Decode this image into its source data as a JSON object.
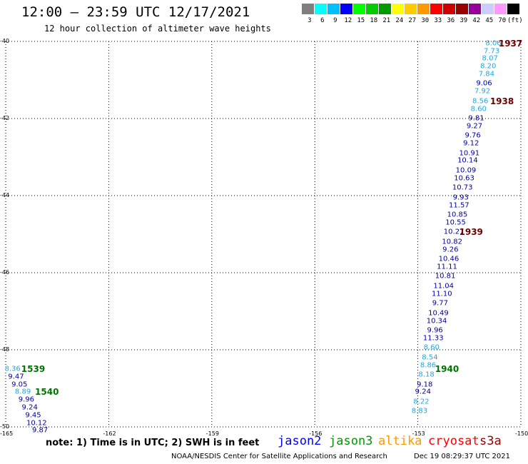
{
  "header": {
    "title": "12:00 — 23:59 UTC 12/17/2021",
    "subtitle": "12 hour collection of altimeter wave heights"
  },
  "scale": {
    "colors": [
      "#7f7f7f",
      "#00ffff",
      "#00bfff",
      "#0000ff",
      "#00ff00",
      "#00cc00",
      "#009900",
      "#ffff00",
      "#ffcc00",
      "#ff9900",
      "#ff0000",
      "#cc0000",
      "#990000",
      "#990099",
      "#ccccff",
      "#ff99ff",
      "#000000"
    ],
    "labels": [
      "3",
      "6",
      "9",
      "12",
      "15",
      "18",
      "21",
      "24",
      "27",
      "30",
      "33",
      "36",
      "39",
      "42",
      "45",
      "70",
      "(ft)"
    ]
  },
  "chart_data": {
    "type": "scatter",
    "xlim": [
      -165,
      -150
    ],
    "ylim": [
      -50,
      -40
    ],
    "x_ticks": [
      "-165",
      "-162",
      "-159",
      "-156",
      "-153",
      "-150"
    ],
    "y_ticks": [
      "-40",
      "-42",
      "-44",
      "-46",
      "-48",
      "-50"
    ],
    "x_tick_values": [
      -165,
      -162,
      -159,
      -156,
      -153,
      -150
    ],
    "y_tick_values": [
      -40,
      -42,
      -44,
      -46,
      -48,
      -50
    ],
    "grid": true,
    "palette": {
      "light": "#1eaadc",
      "dark": "#00009e",
      "time": "#6e0000",
      "time_green": "#007400"
    },
    "points": [
      {
        "x": -150.8,
        "y": -40.05,
        "label": "8.06",
        "tone": "light"
      },
      {
        "x": -150.85,
        "y": -40.25,
        "label": "7.73",
        "tone": "light"
      },
      {
        "x": -150.9,
        "y": -40.45,
        "label": "8.07",
        "tone": "light"
      },
      {
        "x": -150.95,
        "y": -40.65,
        "label": "8.20",
        "tone": "light"
      },
      {
        "x": -151.0,
        "y": -40.85,
        "label": "7.84",
        "tone": "light"
      },
      {
        "x": -151.07,
        "y": -41.1,
        "label": "9.06",
        "tone": "dark"
      },
      {
        "x": -151.12,
        "y": -41.3,
        "label": "7.92",
        "tone": "light"
      },
      {
        "x": -151.18,
        "y": -41.55,
        "label": "8.56",
        "tone": "light"
      },
      {
        "x": -151.23,
        "y": -41.75,
        "label": "8.60",
        "tone": "light"
      },
      {
        "x": -151.3,
        "y": -42.0,
        "label": "9.81",
        "tone": "dark"
      },
      {
        "x": -151.35,
        "y": -42.2,
        "label": "9.27",
        "tone": "dark"
      },
      {
        "x": -151.4,
        "y": -42.45,
        "label": "9.76",
        "tone": "dark"
      },
      {
        "x": -151.45,
        "y": -42.65,
        "label": "9.12",
        "tone": "dark"
      },
      {
        "x": -151.5,
        "y": -42.9,
        "label": "10.91",
        "tone": "dark"
      },
      {
        "x": -151.55,
        "y": -43.1,
        "label": "10.14",
        "tone": "dark"
      },
      {
        "x": -151.6,
        "y": -43.35,
        "label": "10.09",
        "tone": "dark"
      },
      {
        "x": -151.65,
        "y": -43.55,
        "label": "10.63",
        "tone": "dark"
      },
      {
        "x": -151.7,
        "y": -43.8,
        "label": "10.73",
        "tone": "dark"
      },
      {
        "x": -151.75,
        "y": -44.05,
        "label": "9.93",
        "tone": "dark"
      },
      {
        "x": -151.8,
        "y": -44.25,
        "label": "11.57",
        "tone": "dark"
      },
      {
        "x": -151.85,
        "y": -44.5,
        "label": "10.85",
        "tone": "dark"
      },
      {
        "x": -151.9,
        "y": -44.7,
        "label": "10.55",
        "tone": "dark"
      },
      {
        "x": -151.95,
        "y": -44.95,
        "label": "10.27",
        "tone": "dark"
      },
      {
        "x": -152.0,
        "y": -45.2,
        "label": "10.82",
        "tone": "dark"
      },
      {
        "x": -152.05,
        "y": -45.4,
        "label": "9.26",
        "tone": "dark"
      },
      {
        "x": -152.1,
        "y": -45.65,
        "label": "10.46",
        "tone": "dark"
      },
      {
        "x": -152.15,
        "y": -45.85,
        "label": "11.11",
        "tone": "dark"
      },
      {
        "x": -152.2,
        "y": -46.1,
        "label": "10.81",
        "tone": "dark"
      },
      {
        "x": -152.25,
        "y": -46.35,
        "label": "11.04",
        "tone": "dark"
      },
      {
        "x": -152.3,
        "y": -46.55,
        "label": "11.10",
        "tone": "dark"
      },
      {
        "x": -152.35,
        "y": -46.8,
        "label": "9.77",
        "tone": "dark"
      },
      {
        "x": -152.4,
        "y": -47.05,
        "label": "10.49",
        "tone": "dark"
      },
      {
        "x": -152.45,
        "y": -47.25,
        "label": "10.34",
        "tone": "dark"
      },
      {
        "x": -152.5,
        "y": -47.5,
        "label": "9.96",
        "tone": "dark"
      },
      {
        "x": -152.55,
        "y": -47.7,
        "label": "11.33",
        "tone": "dark"
      },
      {
        "x": -152.6,
        "y": -47.95,
        "label": "8.60",
        "tone": "light"
      },
      {
        "x": -152.65,
        "y": -48.2,
        "label": "8.54",
        "tone": "light"
      },
      {
        "x": -152.7,
        "y": -48.4,
        "label": "8.86",
        "tone": "light"
      },
      {
        "x": -152.75,
        "y": -48.65,
        "label": "8.18",
        "tone": "light"
      },
      {
        "x": -152.8,
        "y": -48.9,
        "label": "9.18",
        "tone": "dark"
      },
      {
        "x": -152.85,
        "y": -49.1,
        "label": "9.24",
        "tone": "dark"
      },
      {
        "x": -152.9,
        "y": -49.35,
        "label": "8.22",
        "tone": "light"
      },
      {
        "x": -152.95,
        "y": -49.6,
        "label": "8.83",
        "tone": "light"
      },
      {
        "x": -164.8,
        "y": -48.5,
        "label": "8.36",
        "tone": "light"
      },
      {
        "x": -164.7,
        "y": -48.7,
        "label": "9.47",
        "tone": "dark"
      },
      {
        "x": -164.6,
        "y": -48.9,
        "label": "9.05",
        "tone": "dark"
      },
      {
        "x": -164.5,
        "y": -49.1,
        "label": "8.89",
        "tone": "light"
      },
      {
        "x": -164.4,
        "y": -49.3,
        "label": "9.96",
        "tone": "dark"
      },
      {
        "x": -164.3,
        "y": -49.5,
        "label": "9.24",
        "tone": "dark"
      },
      {
        "x": -164.2,
        "y": -49.7,
        "label": "9.45",
        "tone": "dark"
      },
      {
        "x": -164.1,
        "y": -49.9,
        "label": "10.12",
        "tone": "dark"
      },
      {
        "x": -164.0,
        "y": -50.1,
        "label": "9.87",
        "tone": "dark"
      }
    ],
    "time_labels": [
      {
        "x": -150.3,
        "y": -40.05,
        "label": "1937",
        "tone": "time"
      },
      {
        "x": -150.55,
        "y": -41.55,
        "label": "1938",
        "tone": "time"
      },
      {
        "x": -151.45,
        "y": -44.95,
        "label": "1939",
        "tone": "time"
      },
      {
        "x": -152.15,
        "y": -48.5,
        "label": "1940",
        "tone": "time_green"
      },
      {
        "x": -164.2,
        "y": -48.5,
        "label": "1539",
        "tone": "time_green"
      },
      {
        "x": -163.8,
        "y": -49.1,
        "label": "1540",
        "tone": "time_green"
      }
    ]
  },
  "footer": {
    "note": "note:  1) Time is in UTC;  2) SWH is in feet",
    "satellites": [
      {
        "name": "jason2",
        "color": "#0000ff"
      },
      {
        "name": "jason3",
        "color": "#009900"
      },
      {
        "name": "altika",
        "color": "#ff9900"
      },
      {
        "name": "cryosat",
        "color": "#ff0000"
      },
      {
        "name": "s3a",
        "color": "#990000"
      }
    ],
    "credit": "NOAA/NESDIS Center for Satellite Applications and Research",
    "timestamp": "Dec 19 08:29:37 UTC 2021"
  }
}
